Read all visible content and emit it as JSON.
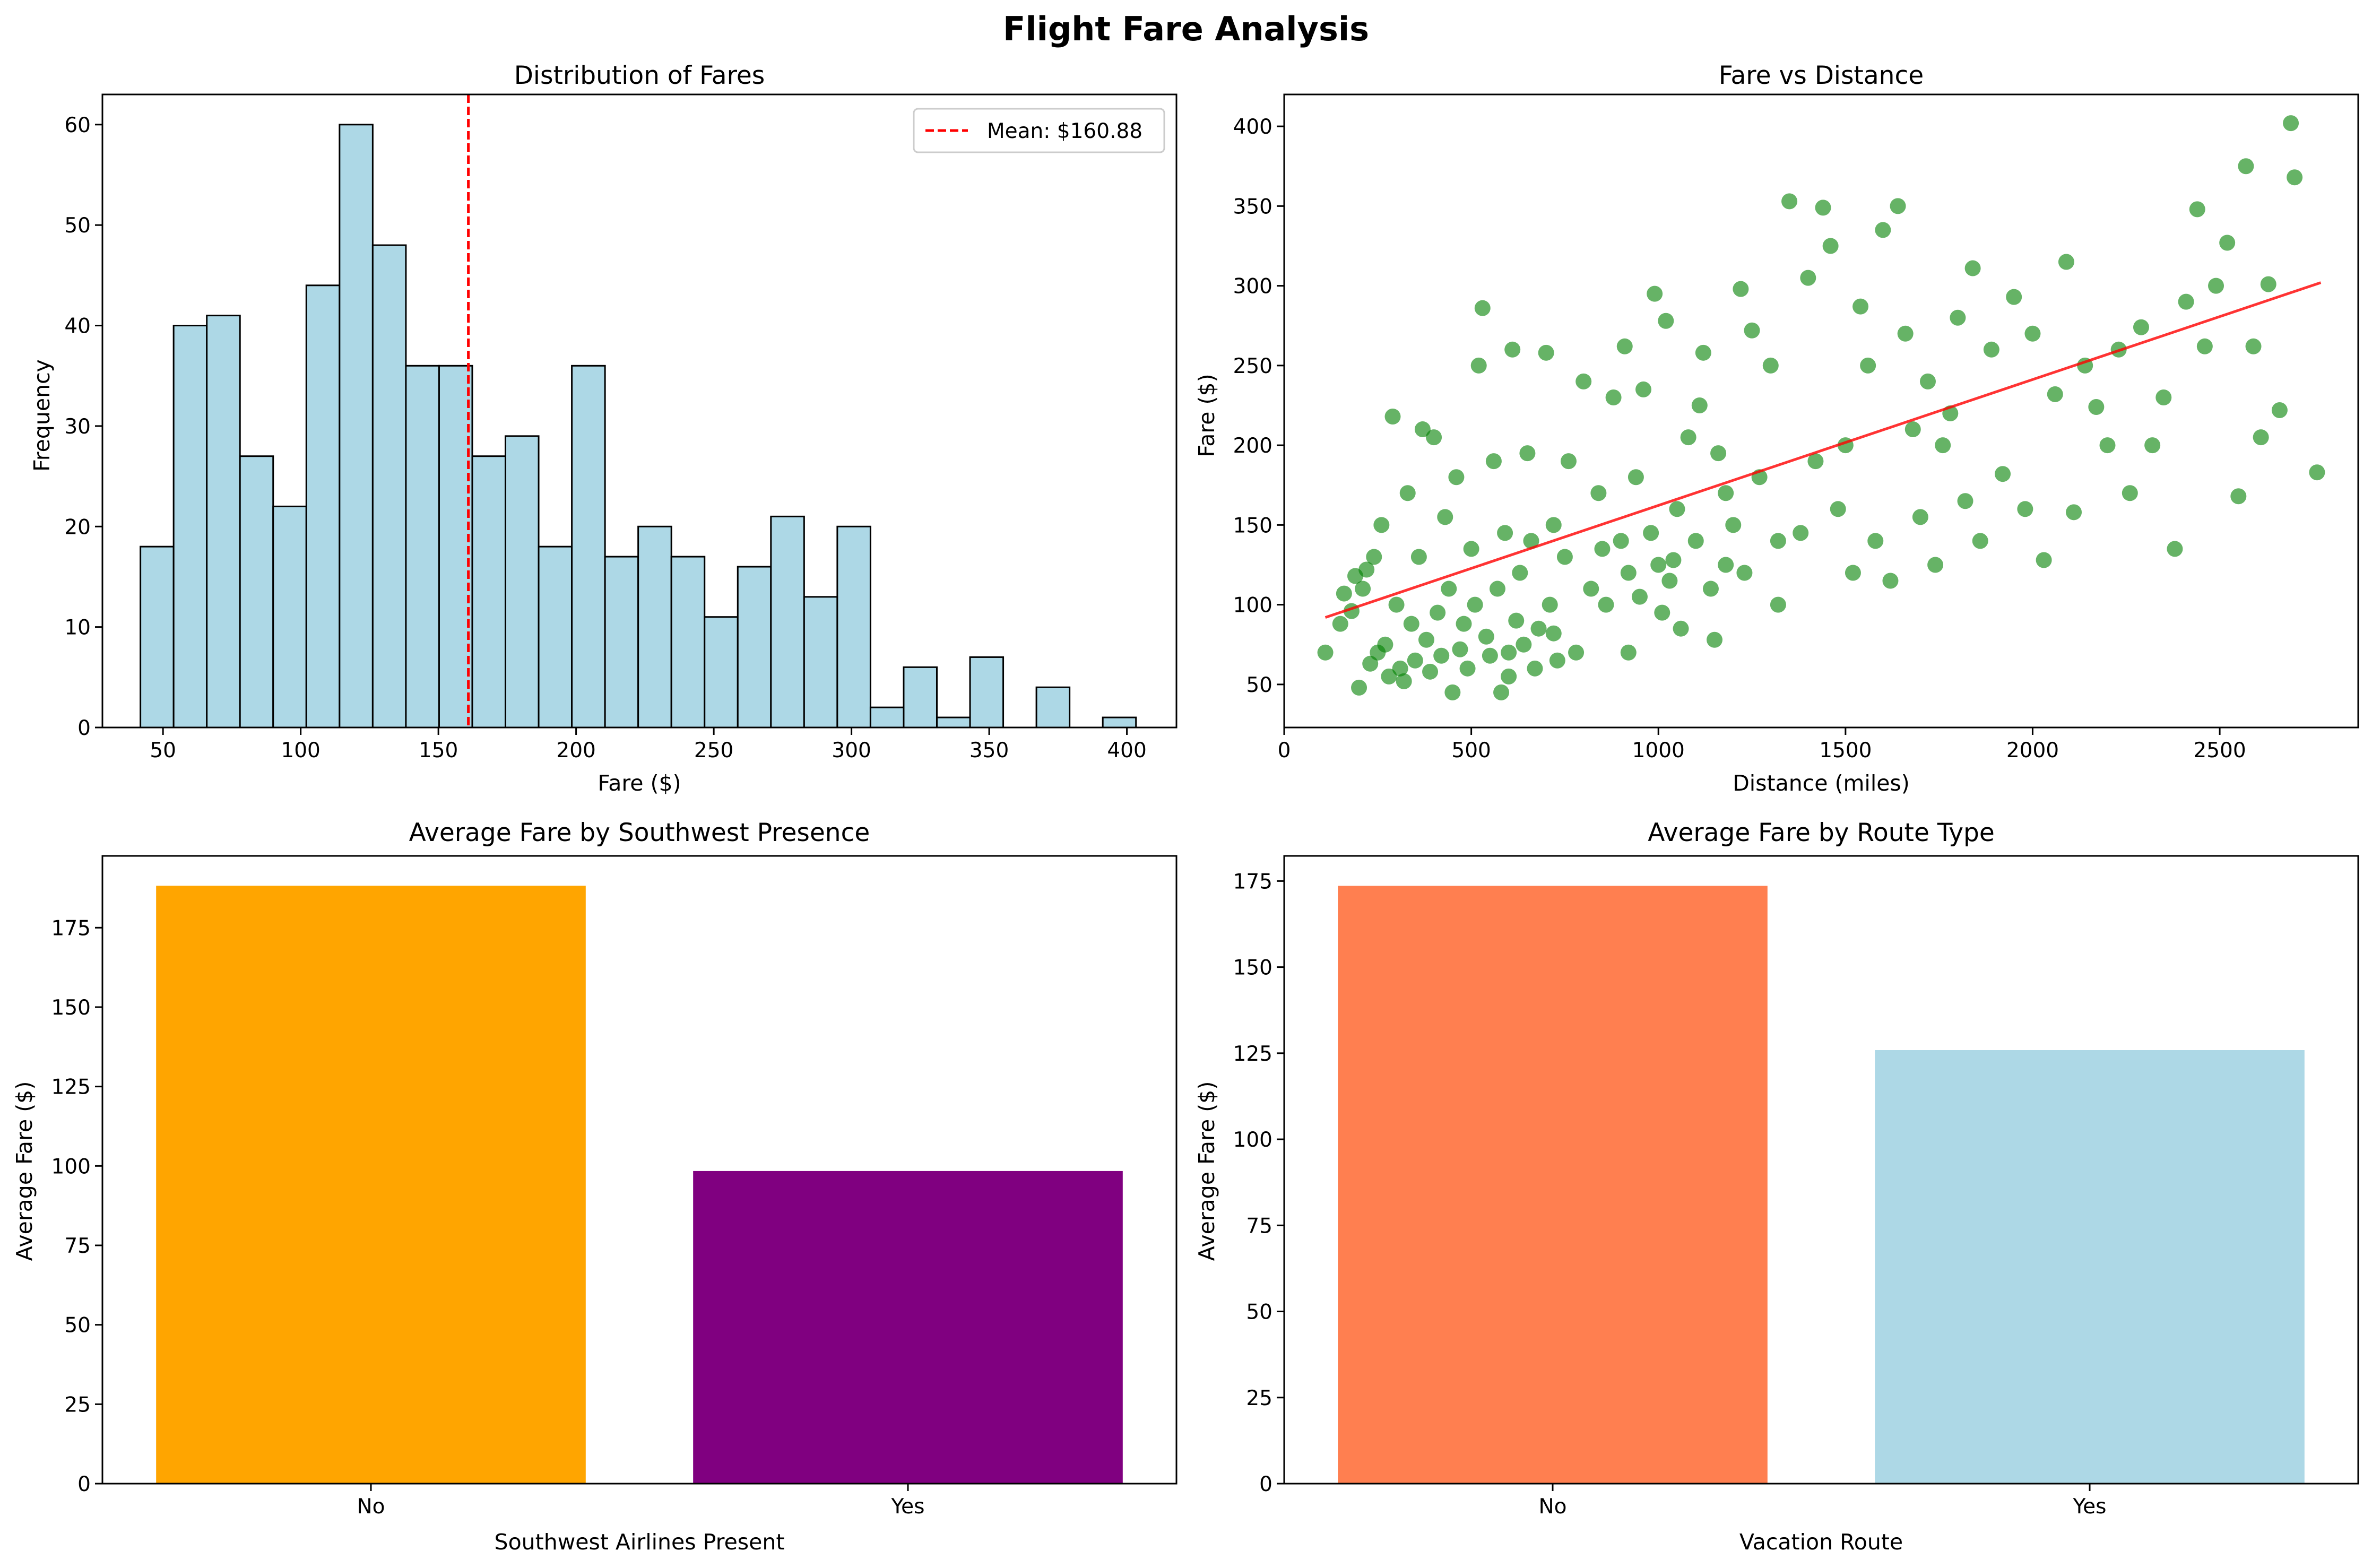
{
  "figure": {
    "title": "Flight Fare Analysis"
  },
  "chart_data": [
    {
      "type": "histogram",
      "title": "Distribution of Fares",
      "xlabel": "Fare ($)",
      "ylabel": "Frequency",
      "xlim": [
        28,
        418
      ],
      "ylim": [
        0,
        63
      ],
      "xticks": [
        50,
        100,
        150,
        200,
        250,
        300,
        350,
        400
      ],
      "yticks": [
        0,
        10,
        20,
        30,
        40,
        50,
        60
      ],
      "bin_start": 41.8,
      "bin_width": 12.05,
      "counts": [
        18,
        40,
        41,
        27,
        22,
        44,
        60,
        48,
        36,
        36,
        27,
        29,
        18,
        36,
        17,
        20,
        17,
        11,
        16,
        21,
        13,
        20,
        2,
        6,
        1,
        7,
        0,
        4,
        0,
        1
      ],
      "bar_color": "#add8e6",
      "edge_color": "#000000",
      "mean_line": {
        "value": 160.88,
        "color": "#ff0000",
        "label": "Mean: $160.88"
      },
      "legend": "top-right",
      "grid": false
    },
    {
      "type": "scatter",
      "title": "Fare vs Distance",
      "xlabel": "Distance (miles)",
      "ylabel": "Fare ($)",
      "xlim": [
        0,
        2870
      ],
      "ylim": [
        23,
        420
      ],
      "xticks": [
        0,
        500,
        1000,
        1500,
        2000,
        2500
      ],
      "yticks": [
        50,
        100,
        150,
        200,
        250,
        300,
        350,
        400
      ],
      "point_color": "#008000",
      "trend_color": "#ff0000",
      "trendline": {
        "x": [
          110,
          2770
        ],
        "y": [
          92,
          302
        ]
      },
      "points": [
        [
          110,
          70
        ],
        [
          150,
          88
        ],
        [
          160,
          107
        ],
        [
          180,
          96
        ],
        [
          190,
          118
        ],
        [
          200,
          48
        ],
        [
          210,
          110
        ],
        [
          220,
          122
        ],
        [
          230,
          63
        ],
        [
          240,
          130
        ],
        [
          250,
          70
        ],
        [
          260,
          150
        ],
        [
          270,
          75
        ],
        [
          280,
          55
        ],
        [
          290,
          218
        ],
        [
          300,
          100
        ],
        [
          310,
          60
        ],
        [
          320,
          52
        ],
        [
          330,
          170
        ],
        [
          340,
          88
        ],
        [
          350,
          65
        ],
        [
          360,
          130
        ],
        [
          370,
          210
        ],
        [
          380,
          78
        ],
        [
          390,
          58
        ],
        [
          400,
          205
        ],
        [
          410,
          95
        ],
        [
          420,
          68
        ],
        [
          430,
          155
        ],
        [
          440,
          110
        ],
        [
          450,
          45
        ],
        [
          460,
          180
        ],
        [
          470,
          72
        ],
        [
          480,
          88
        ],
        [
          490,
          60
        ],
        [
          500,
          135
        ],
        [
          510,
          100
        ],
        [
          520,
          250
        ],
        [
          530,
          286
        ],
        [
          540,
          80
        ],
        [
          550,
          68
        ],
        [
          560,
          190
        ],
        [
          570,
          110
        ],
        [
          580,
          45
        ],
        [
          590,
          145
        ],
        [
          600,
          70
        ],
        [
          610,
          260
        ],
        [
          620,
          90
        ],
        [
          630,
          120
        ],
        [
          640,
          75
        ],
        [
          650,
          195
        ],
        [
          660,
          140
        ],
        [
          670,
          60
        ],
        [
          680,
          85
        ],
        [
          700,
          258
        ],
        [
          710,
          100
        ],
        [
          720,
          150
        ],
        [
          730,
          65
        ],
        [
          750,
          130
        ],
        [
          760,
          190
        ],
        [
          780,
          70
        ],
        [
          800,
          240
        ],
        [
          820,
          110
        ],
        [
          840,
          170
        ],
        [
          860,
          100
        ],
        [
          880,
          230
        ],
        [
          900,
          140
        ],
        [
          910,
          262
        ],
        [
          920,
          120
        ],
        [
          940,
          180
        ],
        [
          950,
          105
        ],
        [
          960,
          235
        ],
        [
          980,
          145
        ],
        [
          990,
          295
        ],
        [
          1000,
          125
        ],
        [
          1010,
          95
        ],
        [
          1020,
          278
        ],
        [
          1030,
          115
        ],
        [
          1050,
          160
        ],
        [
          1060,
          85
        ],
        [
          1080,
          205
        ],
        [
          1100,
          140
        ],
        [
          1110,
          225
        ],
        [
          1120,
          258
        ],
        [
          1140,
          110
        ],
        [
          1150,
          78
        ],
        [
          1160,
          195
        ],
        [
          1180,
          125
        ],
        [
          1200,
          150
        ],
        [
          1220,
          298
        ],
        [
          1230,
          120
        ],
        [
          1250,
          272
        ],
        [
          1270,
          180
        ],
        [
          1300,
          250
        ],
        [
          1320,
          100
        ],
        [
          1350,
          353
        ],
        [
          1380,
          145
        ],
        [
          1400,
          305
        ],
        [
          1420,
          190
        ],
        [
          1440,
          349
        ],
        [
          1460,
          325
        ],
        [
          1480,
          160
        ],
        [
          1500,
          200
        ],
        [
          1520,
          120
        ],
        [
          1540,
          287
        ],
        [
          1560,
          250
        ],
        [
          1580,
          140
        ],
        [
          1600,
          335
        ],
        [
          1620,
          115
        ],
        [
          1640,
          350
        ],
        [
          1660,
          270
        ],
        [
          1680,
          210
        ],
        [
          1700,
          155
        ],
        [
          1720,
          240
        ],
        [
          1740,
          125
        ],
        [
          1760,
          200
        ],
        [
          1780,
          220
        ],
        [
          1800,
          280
        ],
        [
          1820,
          165
        ],
        [
          1840,
          311
        ],
        [
          1860,
          140
        ],
        [
          1890,
          260
        ],
        [
          1920,
          182
        ],
        [
          1950,
          293
        ],
        [
          1980,
          160
        ],
        [
          2000,
          270
        ],
        [
          2030,
          128
        ],
        [
          2060,
          232
        ],
        [
          2090,
          315
        ],
        [
          2110,
          158
        ],
        [
          2140,
          250
        ],
        [
          2170,
          224
        ],
        [
          2200,
          200
        ],
        [
          2230,
          260
        ],
        [
          2260,
          170
        ],
        [
          2290,
          274
        ],
        [
          2320,
          200
        ],
        [
          2350,
          230
        ],
        [
          2380,
          135
        ],
        [
          2410,
          290
        ],
        [
          2440,
          348
        ],
        [
          2460,
          262
        ],
        [
          2490,
          300
        ],
        [
          2520,
          327
        ],
        [
          2550,
          168
        ],
        [
          2570,
          375
        ],
        [
          2590,
          262
        ],
        [
          2610,
          205
        ],
        [
          2630,
          301
        ],
        [
          2660,
          222
        ],
        [
          2690,
          402
        ],
        [
          2700,
          368
        ],
        [
          2760,
          183
        ],
        [
          600,
          55
        ],
        [
          720,
          82
        ],
        [
          850,
          135
        ],
        [
          920,
          70
        ],
        [
          1040,
          128
        ],
        [
          1180,
          170
        ],
        [
          1320,
          140
        ]
      ],
      "grid": false
    },
    {
      "type": "bar",
      "title": "Average Fare by Southwest Presence",
      "xlabel": "Southwest Airlines Present",
      "ylabel": "Average Fare ($)",
      "categories": [
        "No",
        "Yes"
      ],
      "values": [
        188.2,
        98.4
      ],
      "colors": [
        "#ffa500",
        "#800080"
      ],
      "ylim": [
        0,
        197.6
      ],
      "yticks": [
        0,
        25,
        50,
        75,
        100,
        125,
        150,
        175
      ],
      "grid": false
    },
    {
      "type": "bar",
      "title": "Average Fare by Route Type",
      "xlabel": "Vacation Route",
      "ylabel": "Average Fare ($)",
      "categories": [
        "No",
        "Yes"
      ],
      "values": [
        173.6,
        125.9
      ],
      "colors": [
        "#ff7f50",
        "#add8e6"
      ],
      "ylim": [
        0,
        182.3
      ],
      "yticks": [
        0,
        25,
        50,
        75,
        100,
        125,
        150,
        175
      ],
      "grid": false
    }
  ]
}
